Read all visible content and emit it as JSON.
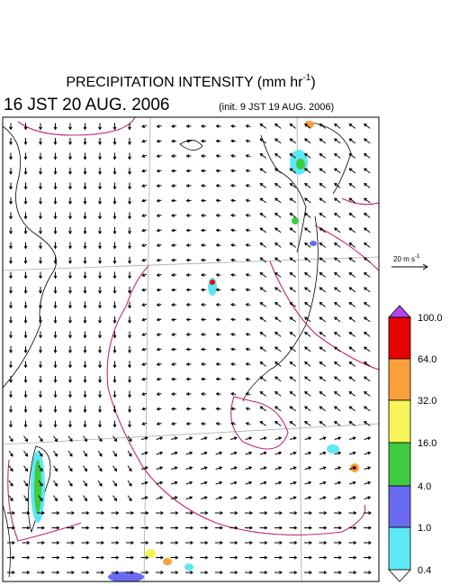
{
  "header": {
    "title": "PRECIPITATION INTENSITY (mm hr",
    "title_exponent": "-1",
    "title_close": ")",
    "valid_time": "16 JST 20 AUG. 2006",
    "init_time": "(init. 9 JST 19 AUG. 2006)"
  },
  "wind_scale": {
    "label": "20 m s",
    "label_exponent": "-1"
  },
  "colorbar": {
    "labels": [
      "100.0",
      "64.0",
      "32.0",
      "16.0",
      "4.0",
      "1.0",
      "0.4"
    ]
  }
}
